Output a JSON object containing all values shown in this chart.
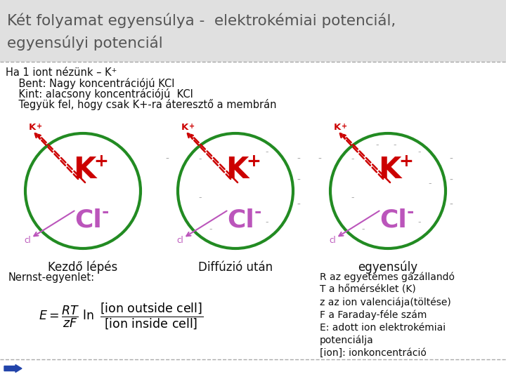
{
  "title_line1": "Két folyamat egyensúlya -  elektrokémiai potenciál,",
  "title_line2": "egyensúlyi potenciál",
  "sub1": "Ha 1 iont nézünk – K⁺",
  "sub2": "    Bent: Nagy koncentrációjú KCl",
  "sub3": "    Kint: alacsony koncentrációjú  KCl",
  "sub4": "    Tegyük fel, hogy csak K+-ra áteresztő a membrán",
  "labels": [
    "Kezdő lépés",
    "Diffúzió után",
    "egyensúly"
  ],
  "nernst_label": "Nernst-egyenlet:",
  "right_text": [
    "R az egyetemes gázállandó",
    "T a hőmérséklet (K)",
    "z az ion valenciája(töltése)",
    "F a Faraday-féle szám",
    "E: adott ion elektrokémiai",
    "potenciálja",
    "[ion]: ionkoncentráció"
  ],
  "circle_color": "#228B22",
  "k_color": "#cc0000",
  "cl_color": "#bb55bb",
  "title_color": "#555555",
  "text_color": "#111111",
  "title_bg": "#e0e0e0",
  "minus_color": "#aaaaaa"
}
